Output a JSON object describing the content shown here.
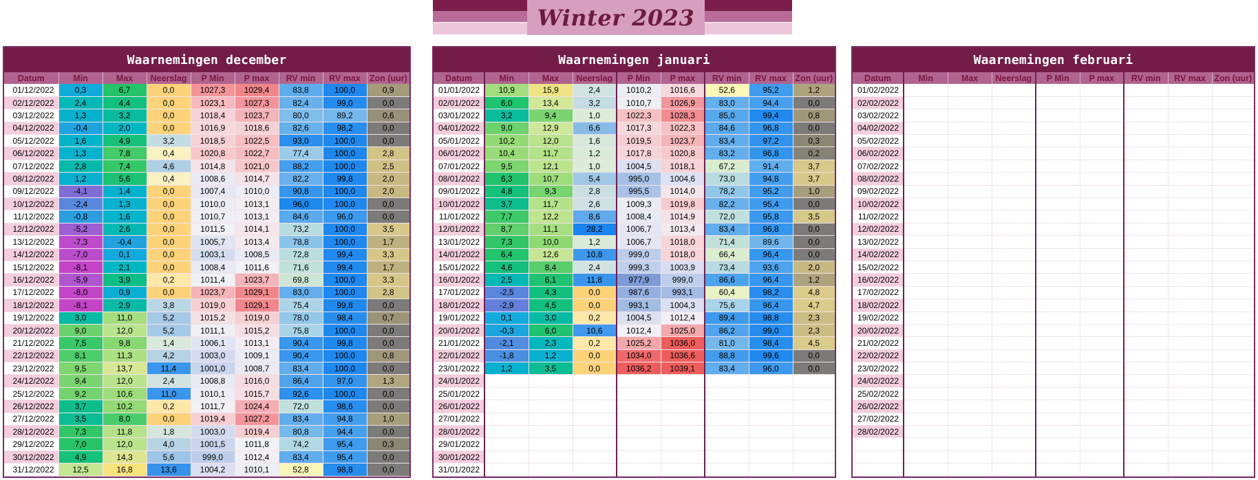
{
  "title": "Winter 2023",
  "headers": [
    "Datum",
    "Min",
    "Max",
    "Neerslag",
    "P Min",
    "P max",
    "RV min",
    "RV max",
    "Zon (uur)"
  ],
  "colors": {
    "purple": "#731c47",
    "header": "#b0648f",
    "header_text": "#7a1640",
    "date_pink": "#f4cedd",
    "banner_dark": "#7a1d4a",
    "banner_mid": "#b96c98",
    "banner_light": "#ecc7da",
    "banner_box": "#d79fbf"
  },
  "panels": [
    {
      "title": "Waarnemingen december",
      "rows": [
        [
          "01/12/2022",
          "0,3",
          "6,7",
          "0,0",
          "1027,3",
          "1029,4",
          "83,8",
          "100,0",
          "0,9"
        ],
        [
          "02/12/2022",
          "2,4",
          "4,4",
          "0,0",
          "1023,1",
          "1027,3",
          "82,4",
          "99,0",
          "0,0"
        ],
        [
          "03/12/2022",
          "1,3",
          "3,2",
          "0,0",
          "1018,4",
          "1023,7",
          "80,0",
          "89,2",
          "0,6"
        ],
        [
          "04/12/2022",
          "-0,4",
          "2,0",
          "0,0",
          "1016,9",
          "1018,6",
          "82,6",
          "98,2",
          "0,0"
        ],
        [
          "05/12/2022",
          "1,6",
          "4,9",
          "3,2",
          "1018,5",
          "1022,5",
          "93,0",
          "100,0",
          "0,0"
        ],
        [
          "06/12/2022",
          "1,3",
          "7,8",
          "0,4",
          "1020,8",
          "1022,7",
          "77,4",
          "100,0",
          "2,8"
        ],
        [
          "07/12/2022",
          "2,8",
          "7,4",
          "4,6",
          "1014,8",
          "1021,0",
          "88,2",
          "100,0",
          "2,5"
        ],
        [
          "08/12/2022",
          "1,2",
          "5,6",
          "0,4",
          "1008,6",
          "1014,7",
          "82,2",
          "99,8",
          "2,0"
        ],
        [
          "09/12/2022",
          "-4,1",
          "1,4",
          "0,0",
          "1007,4",
          "1010,0",
          "90,8",
          "100,0",
          "2,0"
        ],
        [
          "10/12/2022",
          "-2,4",
          "1,3",
          "0,0",
          "1010,0",
          "1013,1",
          "96,0",
          "100,0",
          "0,0"
        ],
        [
          "11/12/2022",
          "-0,8",
          "1,6",
          "0,0",
          "1010,7",
          "1013,1",
          "84,6",
          "96,0",
          "0,0"
        ],
        [
          "12/12/2022",
          "-5,2",
          "2,6",
          "0,0",
          "1011,5",
          "1014,1",
          "73,2",
          "100,0",
          "3,5"
        ],
        [
          "13/12/2022",
          "-7,3",
          "-0,4",
          "0,0",
          "1005,7",
          "1013,4",
          "78,8",
          "100,0",
          "1,7"
        ],
        [
          "14/12/2022",
          "-7,0",
          "0,1",
          "0,0",
          "1003,1",
          "1008,5",
          "72,8",
          "99,4",
          "3,3"
        ],
        [
          "15/12/2022",
          "-8,1",
          "2,1",
          "0,0",
          "1008,4",
          "1011,6",
          "71,6",
          "99,4",
          "1,7"
        ],
        [
          "16/12/2022",
          "-5,9",
          "3,9",
          "0,2",
          "1011,4",
          "1023,7",
          "69,8",
          "100,0",
          "3,3"
        ],
        [
          "17/12/2022",
          "-8,0",
          "0,9",
          "0,0",
          "1023,7",
          "1029,1",
          "83,0",
          "100,0",
          "2,8"
        ],
        [
          "18/12/2022",
          "-8,1",
          "2,9",
          "3,8",
          "1019,0",
          "1029,1",
          "75,4",
          "99,8",
          "0,0"
        ],
        [
          "19/12/2022",
          "3,0",
          "11,0",
          "5,2",
          "1015,2",
          "1019,0",
          "78,0",
          "98,4",
          "0,7"
        ],
        [
          "20/12/2022",
          "9,0",
          "12,0",
          "5,2",
          "1011,1",
          "1015,2",
          "75,8",
          "100,0",
          "0,0"
        ],
        [
          "21/12/2022",
          "7,5",
          "9,8",
          "1,4",
          "1006,1",
          "1013,1",
          "90,4",
          "99,8",
          "0,0"
        ],
        [
          "22/12/2022",
          "8,1",
          "11,3",
          "4,2",
          "1003,0",
          "1009,1",
          "90,4",
          "100,0",
          "0,8"
        ],
        [
          "23/12/2022",
          "9,5",
          "13,7",
          "11,4",
          "1001,0",
          "1008,7",
          "83,4",
          "100,0",
          "0,0"
        ],
        [
          "24/12/2022",
          "9,4",
          "12,0",
          "2,4",
          "1008,8",
          "1016,0",
          "86,4",
          "97,0",
          "1,3"
        ],
        [
          "25/12/2022",
          "9,2",
          "10,6",
          "11,0",
          "1010,1",
          "1015,7",
          "92,6",
          "100,0",
          "0,0"
        ],
        [
          "26/12/2022",
          "3,7",
          "10,2",
          "0,2",
          "1011,7",
          "1024,4",
          "72,0",
          "98,6",
          "0,0"
        ],
        [
          "27/12/2022",
          "3,5",
          "8,0",
          "0,0",
          "1019,4",
          "1027,2",
          "83,4",
          "94,8",
          "1,0"
        ],
        [
          "28/12/2022",
          "7,3",
          "11,8",
          "1,8",
          "1003,0",
          "1019,4",
          "80,8",
          "94,4",
          "0,0"
        ],
        [
          "29/12/2022",
          "7,0",
          "12,0",
          "4,0",
          "1001,5",
          "1011,8",
          "74,2",
          "95,4",
          "0,3"
        ],
        [
          "30/12/2022",
          "4,9",
          "14,3",
          "5,6",
          "999,0",
          "1012,4",
          "83,4",
          "95,4",
          "0,0"
        ],
        [
          "31/12/2022",
          "12,5",
          "16,8",
          "13,6",
          "1004,2",
          "1010,1",
          "52,8",
          "98,8",
          "0,0"
        ]
      ]
    },
    {
      "title": "Waarnemingen januari",
      "rows": [
        [
          "01/01/2022",
          "10,9",
          "15,9",
          "2,4",
          "1010,2",
          "1016,6",
          "52,6",
          "95,2",
          "1,2"
        ],
        [
          "02/01/2022",
          "6,0",
          "13,4",
          "3,2",
          "1010,7",
          "1026,9",
          "83,0",
          "94,4",
          "0,0"
        ],
        [
          "03/01/2022",
          "3,2",
          "9,4",
          "1,0",
          "1022,3",
          "1028,3",
          "85,0",
          "99,4",
          "0,8"
        ],
        [
          "04/01/2022",
          "9,0",
          "12,9",
          "6,6",
          "1017,3",
          "1022,3",
          "84,6",
          "96,8",
          "0,0"
        ],
        [
          "05/01/2022",
          "10,2",
          "12,0",
          "1,6",
          "1019,5",
          "1023,7",
          "83,4",
          "97,2",
          "0,3"
        ],
        [
          "06/01/2022",
          "10,4",
          "11,7",
          "1,2",
          "1017,8",
          "1020,8",
          "83,2",
          "96,8",
          "0,2"
        ],
        [
          "07/01/2022",
          "9,5",
          "12,1",
          "1,0",
          "1004,5",
          "1018,1",
          "67,2",
          "91,4",
          "3,7"
        ],
        [
          "08/01/2022",
          "6,3",
          "10,7",
          "5,4",
          "995,0",
          "1004,6",
          "73,0",
          "94,8",
          "3,7"
        ],
        [
          "09/01/2022",
          "4,8",
          "9,3",
          "2,8",
          "995,5",
          "1014,0",
          "78,2",
          "95,2",
          "1,0"
        ],
        [
          "10/01/2022",
          "3,7",
          "11,7",
          "2,6",
          "1009,3",
          "1019,8",
          "82,2",
          "95,4",
          "0,0"
        ],
        [
          "11/01/2022",
          "7,7",
          "12,2",
          "8,6",
          "1008,4",
          "1014,9",
          "72,0",
          "95,8",
          "3,5"
        ],
        [
          "12/01/2022",
          "8,7",
          "11,1",
          "28,2",
          "1006,7",
          "1013,4",
          "83,4",
          "96,8",
          "0,0"
        ],
        [
          "13/01/2022",
          "7,3",
          "10,0",
          "1,2",
          "1006,7",
          "1018,0",
          "71,4",
          "89,6",
          "0,0"
        ],
        [
          "14/01/2022",
          "6,4",
          "12,6",
          "10,8",
          "999,0",
          "1018,0",
          "66,4",
          "96,4",
          "0,0"
        ],
        [
          "15/01/2022",
          "4,6",
          "8,4",
          "2,4",
          "999,3",
          "1003,9",
          "73,4",
          "93,6",
          "2,0"
        ],
        [
          "16/01/2022",
          "2,5",
          "6,1",
          "11,8",
          "977,9",
          "999,0",
          "86,6",
          "96,4",
          "1,2"
        ],
        [
          "17/01/2022",
          "-2,5",
          "4,3",
          "0,0",
          "987,6",
          "993,1",
          "60,4",
          "98,2",
          "4,8"
        ],
        [
          "18/01/2022",
          "-2,9",
          "4,5",
          "0,0",
          "993,1",
          "1004,3",
          "75,6",
          "96,4",
          "4,7"
        ],
        [
          "19/01/2022",
          "0,1",
          "3,0",
          "0,2",
          "1004,5",
          "1012,4",
          "89,4",
          "98,8",
          "2,3"
        ],
        [
          "20/01/2022",
          "-0,3",
          "6,0",
          "10,6",
          "1012,4",
          "1025,0",
          "86,2",
          "99,0",
          "2,3"
        ],
        [
          "21/01/2022",
          "-2,1",
          "2,3",
          "0,2",
          "1025,2",
          "1036,0",
          "81,0",
          "98,4",
          "4,5"
        ],
        [
          "22/01/2022",
          "-1,8",
          "1,2",
          "0,0",
          "1034,0",
          "1036,6",
          "88,8",
          "99,6",
          "0,0"
        ],
        [
          "23/01/2022",
          "1,2",
          "3,5",
          "0,0",
          "1036,2",
          "1039,1",
          "83,4",
          "96,0",
          "0,0"
        ],
        [
          "24/01/2022",
          "",
          "",
          "",
          "",
          "",
          "",
          "",
          ""
        ],
        [
          "25/01/2022",
          "",
          "",
          "",
          "",
          "",
          "",
          "",
          ""
        ],
        [
          "26/01/2022",
          "",
          "",
          "",
          "",
          "",
          "",
          "",
          ""
        ],
        [
          "27/01/2022",
          "",
          "",
          "",
          "",
          "",
          "",
          "",
          ""
        ],
        [
          "28/01/2022",
          "",
          "",
          "",
          "",
          "",
          "",
          "",
          ""
        ],
        [
          "29/01/2022",
          "",
          "",
          "",
          "",
          "",
          "",
          "",
          ""
        ],
        [
          "30/01/2022",
          "",
          "",
          "",
          "",
          "",
          "",
          "",
          ""
        ],
        [
          "31/01/2022",
          "",
          "",
          "",
          "",
          "",
          "",
          "",
          ""
        ]
      ]
    },
    {
      "title": "Waarnemingen februari",
      "rows": [
        [
          "01/02/2022",
          "",
          "",
          "",
          "",
          "",
          "",
          "",
          ""
        ],
        [
          "02/02/2022",
          "",
          "",
          "",
          "",
          "",
          "",
          "",
          ""
        ],
        [
          "03/02/2022",
          "",
          "",
          "",
          "",
          "",
          "",
          "",
          ""
        ],
        [
          "04/02/2022",
          "",
          "",
          "",
          "",
          "",
          "",
          "",
          ""
        ],
        [
          "05/02/2022",
          "",
          "",
          "",
          "",
          "",
          "",
          "",
          ""
        ],
        [
          "06/02/2022",
          "",
          "",
          "",
          "",
          "",
          "",
          "",
          ""
        ],
        [
          "07/02/2022",
          "",
          "",
          "",
          "",
          "",
          "",
          "",
          ""
        ],
        [
          "08/02/2022",
          "",
          "",
          "",
          "",
          "",
          "",
          "",
          ""
        ],
        [
          "09/02/2022",
          "",
          "",
          "",
          "",
          "",
          "",
          "",
          ""
        ],
        [
          "10/02/2022",
          "",
          "",
          "",
          "",
          "",
          "",
          "",
          ""
        ],
        [
          "11/02/2022",
          "",
          "",
          "",
          "",
          "",
          "",
          "",
          ""
        ],
        [
          "12/02/2022",
          "",
          "",
          "",
          "",
          "",
          "",
          "",
          ""
        ],
        [
          "13/02/2022",
          "",
          "",
          "",
          "",
          "",
          "",
          "",
          ""
        ],
        [
          "14/02/2022",
          "",
          "",
          "",
          "",
          "",
          "",
          "",
          ""
        ],
        [
          "15/02/2022",
          "",
          "",
          "",
          "",
          "",
          "",
          "",
          ""
        ],
        [
          "16/02/2022",
          "",
          "",
          "",
          "",
          "",
          "",
          "",
          ""
        ],
        [
          "17/02/2022",
          "",
          "",
          "",
          "",
          "",
          "",
          "",
          ""
        ],
        [
          "18/02/2022",
          "",
          "",
          "",
          "",
          "",
          "",
          "",
          ""
        ],
        [
          "19/02/2022",
          "",
          "",
          "",
          "",
          "",
          "",
          "",
          ""
        ],
        [
          "20/02/2022",
          "",
          "",
          "",
          "",
          "",
          "",
          "",
          ""
        ],
        [
          "21/02/2022",
          "",
          "",
          "",
          "",
          "",
          "",
          "",
          ""
        ],
        [
          "22/02/2022",
          "",
          "",
          "",
          "",
          "",
          "",
          "",
          ""
        ],
        [
          "23/02/2022",
          "",
          "",
          "",
          "",
          "",
          "",
          "",
          ""
        ],
        [
          "24/02/2022",
          "",
          "",
          "",
          "",
          "",
          "",
          "",
          ""
        ],
        [
          "25/02/2022",
          "",
          "",
          "",
          "",
          "",
          "",
          "",
          ""
        ],
        [
          "26/02/2022",
          "",
          "",
          "",
          "",
          "",
          "",
          "",
          ""
        ],
        [
          "27/02/2022",
          "",
          "",
          "",
          "",
          "",
          "",
          "",
          ""
        ],
        [
          "28/02/2022",
          "",
          "",
          "",
          "",
          "",
          "",
          "",
          ""
        ],
        [
          "",
          "",
          "",
          "",
          "",
          "",
          "",
          "",
          ""
        ],
        [
          "",
          "",
          "",
          "",
          "",
          "",
          "",
          "",
          ""
        ],
        [
          "",
          "",
          "",
          "",
          "",
          "",
          "",
          "",
          ""
        ]
      ]
    }
  ]
}
